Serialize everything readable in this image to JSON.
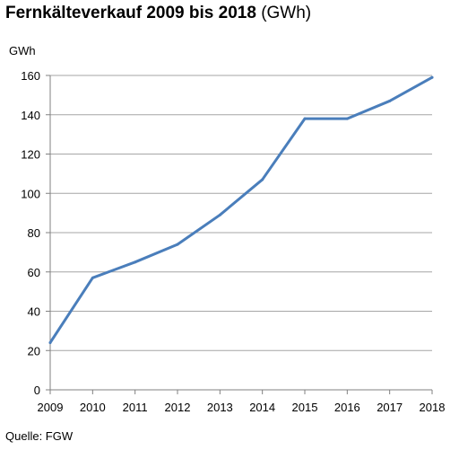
{
  "title_main": "Fernkälteverkauf 2009 bis 2018",
  "title_unit": "(GWh)",
  "source": "Quelle: FGW",
  "chart_data": {
    "type": "line",
    "title": "Fernkälteverkauf 2009 bis 2018 (GWh)",
    "ylabel": "GWh",
    "xlabel": "",
    "x": [
      "2009",
      "2010",
      "2011",
      "2012",
      "2013",
      "2014",
      "2015",
      "2016",
      "2017",
      "2018"
    ],
    "series": [
      {
        "values": [
          24,
          57,
          65,
          74,
          89,
          107,
          138,
          138,
          147,
          159
        ],
        "color": "#4a7ebb"
      }
    ],
    "ylim": [
      0,
      160
    ],
    "yticks": [
      0,
      20,
      40,
      60,
      80,
      100,
      120,
      140,
      160
    ],
    "grid": true,
    "legend": "none"
  }
}
